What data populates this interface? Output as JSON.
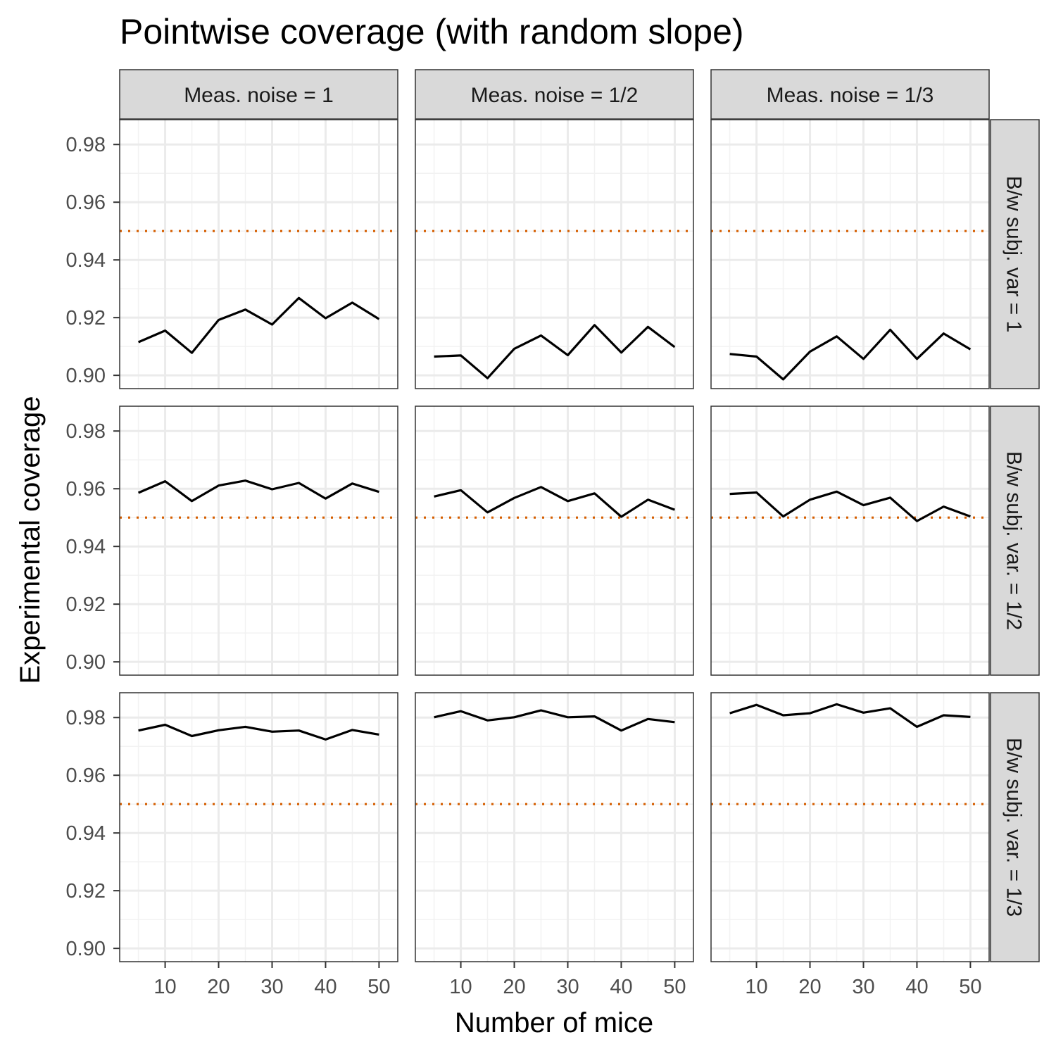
{
  "chart_data": {
    "type": "line",
    "title": "Pointwise coverage (with random slope)",
    "xlabel": "Number of mice",
    "ylabel": "Experimental coverage",
    "x": [
      5,
      10,
      15,
      20,
      25,
      30,
      35,
      40,
      45,
      50
    ],
    "xlim": [
      1.5,
      53.5
    ],
    "ylim": [
      0.8954,
      0.9886
    ],
    "x_ticks": [
      10,
      20,
      30,
      40,
      50
    ],
    "x_tick_labels": [
      "10",
      "20",
      "30",
      "40",
      "50"
    ],
    "y_ticks": [
      0.9,
      0.92,
      0.94,
      0.96,
      0.98
    ],
    "y_tick_labels": [
      "0.90",
      "0.92",
      "0.94",
      "0.96",
      "0.98"
    ],
    "grid": true,
    "reference_line": {
      "y": 0.95,
      "style": "dotted",
      "color": "#D55E00"
    },
    "line_color": "#000000",
    "col_labels": [
      "Meas. noise = 1",
      "Meas. noise = 1/2",
      "Meas. noise = 1/3"
    ],
    "row_labels": [
      "B/w subj. var = 1",
      "B/w subj. var. = 1/2",
      "B/w subj. var. = 1/3"
    ],
    "panels": [
      [
        {
          "values": [
            0.9115,
            0.9155,
            0.9078,
            0.9192,
            0.9228,
            0.9176,
            0.9268,
            0.9198,
            0.9252,
            0.9195
          ]
        },
        {
          "values": [
            0.9065,
            0.9069,
            0.899,
            0.9092,
            0.9138,
            0.907,
            0.9174,
            0.9079,
            0.9168,
            0.9098
          ]
        },
        {
          "values": [
            0.9074,
            0.9065,
            0.8986,
            0.9082,
            0.9135,
            0.9057,
            0.9158,
            0.9057,
            0.9145,
            0.909
          ]
        }
      ],
      [
        {
          "values": [
            0.9586,
            0.9626,
            0.9557,
            0.9611,
            0.9628,
            0.9598,
            0.962,
            0.9566,
            0.9618,
            0.9589
          ]
        },
        {
          "values": [
            0.9573,
            0.9595,
            0.9518,
            0.9568,
            0.9606,
            0.9557,
            0.9584,
            0.9503,
            0.9562,
            0.9527
          ]
        },
        {
          "values": [
            0.9582,
            0.9587,
            0.9504,
            0.9562,
            0.959,
            0.9543,
            0.9569,
            0.9488,
            0.9538,
            0.9504
          ]
        }
      ],
      [
        {
          "values": [
            0.9755,
            0.9775,
            0.9736,
            0.9756,
            0.9768,
            0.9751,
            0.9755,
            0.9724,
            0.9757,
            0.9741
          ]
        },
        {
          "values": [
            0.9801,
            0.9822,
            0.979,
            0.9801,
            0.9825,
            0.9801,
            0.9804,
            0.9755,
            0.9795,
            0.9784
          ]
        },
        {
          "values": [
            0.9815,
            0.9844,
            0.9808,
            0.9815,
            0.9846,
            0.9817,
            0.9832,
            0.9768,
            0.9808,
            0.9802
          ]
        }
      ]
    ]
  }
}
